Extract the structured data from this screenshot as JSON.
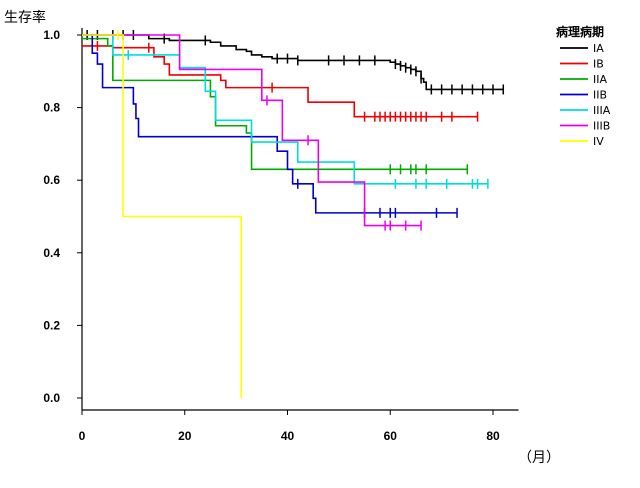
{
  "chart_data": {
    "type": "line",
    "subtype": "kaplan-meier step",
    "ylabel": "生存率",
    "xlabel": "（月）",
    "xlim": [
      0,
      84
    ],
    "ylim": [
      0,
      1.0
    ],
    "xticks": [
      0,
      20,
      40,
      60,
      80
    ],
    "yticks": [
      0.0,
      0.2,
      0.4,
      0.6,
      0.8,
      1.0
    ],
    "xtick_labels": [
      "0",
      "20",
      "40",
      "60",
      "80"
    ],
    "ytick_labels": [
      "0.0",
      "0.2",
      "0.4",
      "0.6",
      "0.8",
      "1.0"
    ],
    "grid": false,
    "legend_title": "病理病期",
    "legend_position": "top-right",
    "series": [
      {
        "name": "IA",
        "color": "#000000",
        "steps": [
          [
            0,
            1.0
          ],
          [
            13,
            0.99
          ],
          [
            17,
            0.985
          ],
          [
            25,
            0.98
          ],
          [
            27,
            0.97
          ],
          [
            30,
            0.96
          ],
          [
            32,
            0.955
          ],
          [
            33,
            0.945
          ],
          [
            35,
            0.94
          ],
          [
            37,
            0.935
          ],
          [
            42,
            0.93
          ],
          [
            60,
            0.925
          ],
          [
            61,
            0.92
          ],
          [
            62,
            0.915
          ],
          [
            63,
            0.91
          ],
          [
            64,
            0.905
          ],
          [
            65,
            0.9
          ],
          [
            66,
            0.88
          ],
          [
            66.5,
            0.87
          ],
          [
            67,
            0.85
          ],
          [
            82,
            0.85
          ]
        ],
        "censor": [
          1,
          3,
          6,
          8,
          10,
          16,
          24,
          38,
          40,
          42,
          48,
          51,
          54,
          57,
          61,
          62,
          63,
          64,
          65,
          66,
          68,
          70,
          72,
          74,
          76,
          78,
          80,
          82
        ]
      },
      {
        "name": "IB",
        "color": "#ee0000",
        "steps": [
          [
            0,
            0.97
          ],
          [
            6,
            0.965
          ],
          [
            14,
            0.94
          ],
          [
            16,
            0.92
          ],
          [
            17,
            0.89
          ],
          [
            27,
            0.875
          ],
          [
            28,
            0.855
          ],
          [
            44,
            0.815
          ],
          [
            53,
            0.775
          ],
          [
            77,
            0.775
          ]
        ],
        "censor": [
          3,
          13,
          37,
          55,
          57,
          58,
          59,
          60,
          61,
          62,
          63,
          64,
          65,
          66,
          67,
          70,
          72,
          77
        ]
      },
      {
        "name": "IIA",
        "color": "#00aa00",
        "steps": [
          [
            0,
            0.99
          ],
          [
            5,
            0.97
          ],
          [
            6,
            0.875
          ],
          [
            25,
            0.83
          ],
          [
            26,
            0.75
          ],
          [
            32,
            0.73
          ],
          [
            33,
            0.63
          ],
          [
            75,
            0.63
          ]
        ],
        "censor": [
          60,
          62,
          64,
          65,
          67,
          75
        ]
      },
      {
        "name": "IIB",
        "color": "#0000cc",
        "steps": [
          [
            0,
            1.0
          ],
          [
            2,
            0.95
          ],
          [
            3,
            0.92
          ],
          [
            4,
            0.855
          ],
          [
            10,
            0.81
          ],
          [
            10.5,
            0.77
          ],
          [
            11,
            0.72
          ],
          [
            38,
            0.68
          ],
          [
            40,
            0.63
          ],
          [
            41,
            0.59
          ],
          [
            45,
            0.55
          ],
          [
            45.5,
            0.51
          ],
          [
            73,
            0.51
          ]
        ],
        "censor": [
          42,
          55,
          58,
          60,
          61,
          69,
          73
        ]
      },
      {
        "name": "IIIA",
        "color": "#00dddd",
        "steps": [
          [
            0,
            1.0
          ],
          [
            6,
            0.945
          ],
          [
            19,
            0.91
          ],
          [
            24,
            0.845
          ],
          [
            26,
            0.765
          ],
          [
            33,
            0.705
          ],
          [
            42,
            0.65
          ],
          [
            53,
            0.59
          ],
          [
            79,
            0.59
          ]
        ],
        "censor": [
          9,
          61,
          65,
          67,
          71,
          76,
          77,
          79
        ]
      },
      {
        "name": "IIIB",
        "color": "#ee00ee",
        "steps": [
          [
            0,
            1.0
          ],
          [
            19,
            0.905
          ],
          [
            35,
            0.82
          ],
          [
            39,
            0.71
          ],
          [
            46,
            0.595
          ],
          [
            55,
            0.475
          ],
          [
            66,
            0.475
          ]
        ],
        "censor": [
          36,
          44,
          59,
          60,
          63,
          66
        ]
      },
      {
        "name": "IV",
        "color": "#ffff00",
        "steps": [
          [
            0,
            1.0
          ],
          [
            8,
            0.5
          ],
          [
            31,
            0.0
          ]
        ],
        "censor": [
          7
        ]
      }
    ]
  }
}
